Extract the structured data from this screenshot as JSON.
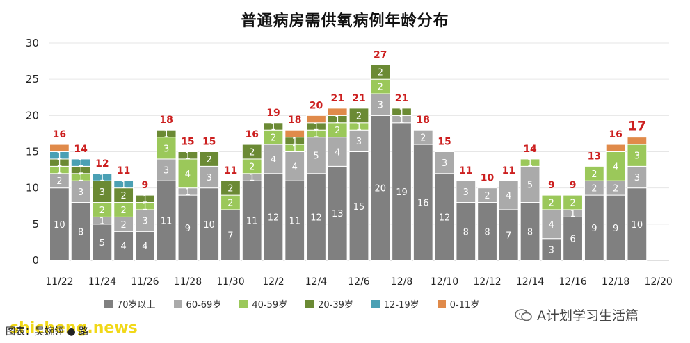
{
  "caption": "图表：吴婉翎 ● 路",
  "watermark": "shicheng.news",
  "wechat": {
    "label": "A计划学习生活篇",
    "icon": "wechat-icon"
  },
  "colors": {
    "70岁以上": "#808080",
    "60-69岁": "#aaaaaa",
    "40-59岁": "#9bc85a",
    "20-39岁": "#6b8a34",
    "12-19岁": "#4aa0b4",
    "0-11岁": "#e08a4a",
    "total_label": "#cc1f1f"
  },
  "chart_data": {
    "type": "bar",
    "stacked": true,
    "title": "普通病房需供氧病例年龄分布",
    "ylim": [
      0,
      30
    ],
    "yticks": [
      0,
      5,
      10,
      15,
      20,
      25,
      30
    ],
    "categories": [
      "11/22",
      "11/23",
      "11/24",
      "11/25",
      "11/26",
      "11/27",
      "11/28",
      "11/29",
      "11/30",
      "12/1",
      "12/2",
      "12/3",
      "12/4",
      "12/5",
      "12/6",
      "12/7",
      "12/8",
      "12/9",
      "12/10",
      "12/11",
      "12/12",
      "12/13",
      "12/14",
      "12/15",
      "12/16",
      "12/17",
      "12/18",
      "12/19",
      "12/20"
    ],
    "xtick_labels": [
      "11/22",
      "",
      "11/24",
      "",
      "11/26",
      "",
      "11/28",
      "",
      "11/30",
      "",
      "12/2",
      "",
      "12/4",
      "",
      "12/6",
      "",
      "12/8",
      "",
      "12/10",
      "",
      "12/12",
      "",
      "12/14",
      "",
      "12/16",
      "",
      "12/18",
      "",
      "12/20"
    ],
    "series": [
      {
        "name": "70岁以上",
        "values": [
          10,
          8,
          5,
          4,
          4,
          11,
          9,
          10,
          7,
          11,
          12,
          11,
          12,
          13,
          15,
          20,
          19,
          16,
          12,
          8,
          8,
          7,
          8,
          3,
          6,
          9,
          9,
          10,
          0
        ]
      },
      {
        "name": "60-69岁",
        "values": [
          2,
          3,
          1,
          2,
          3,
          3,
          1,
          3,
          0,
          1,
          4,
          4,
          5,
          4,
          3,
          3,
          1,
          2,
          3,
          3,
          2,
          4,
          5,
          4,
          1,
          2,
          2,
          3,
          0
        ]
      },
      {
        "name": "40-59岁",
        "values": [
          1,
          1,
          2,
          2,
          1,
          3,
          4,
          0,
          2,
          2,
          2,
          1,
          1,
          2,
          1,
          2,
          0,
          0,
          0,
          0,
          0,
          0,
          1,
          2,
          2,
          2,
          4,
          3,
          0
        ]
      },
      {
        "name": "20-39岁",
        "values": [
          1,
          1,
          3,
          2,
          1,
          1,
          1,
          2,
          2,
          2,
          1,
          1,
          1,
          1,
          2,
          2,
          1,
          0,
          0,
          0,
          0,
          0,
          0,
          0,
          0,
          0,
          0,
          0,
          0
        ]
      },
      {
        "name": "12-19岁",
        "values": [
          1,
          1,
          1,
          1,
          0,
          0,
          0,
          0,
          0,
          0,
          0,
          0,
          0,
          0,
          0,
          0,
          0,
          0,
          0,
          0,
          0,
          0,
          0,
          0,
          0,
          0,
          0,
          0,
          0
        ]
      },
      {
        "name": "0-11岁",
        "values": [
          1,
          0,
          0,
          0,
          0,
          0,
          0,
          0,
          0,
          0,
          0,
          1,
          1,
          1,
          0,
          0,
          0,
          0,
          0,
          0,
          0,
          0,
          0,
          0,
          0,
          0,
          1,
          1,
          0
        ]
      }
    ],
    "totals": [
      16,
      14,
      12,
      11,
      9,
      18,
      15,
      15,
      11,
      16,
      19,
      18,
      20,
      21,
      21,
      27,
      21,
      18,
      15,
      11,
      10,
      11,
      14,
      9,
      9,
      13,
      16,
      17,
      null
    ],
    "segment_labels": [
      [
        "10",
        "2",
        "1",
        "1",
        "1",
        ""
      ],
      [
        "8",
        "3",
        "1",
        "1",
        "1",
        ""
      ],
      [
        "5",
        "1",
        "2",
        "3",
        "1",
        ""
      ],
      [
        "4",
        "2",
        "2",
        "2",
        "1",
        ""
      ],
      [
        "4",
        "3",
        "1",
        "1",
        "",
        ""
      ],
      [
        "11",
        "3",
        "3",
        "1",
        "",
        ""
      ],
      [
        "9",
        "1",
        "4",
        "1",
        "",
        ""
      ],
      [
        "10",
        "3",
        "",
        "2",
        "",
        ""
      ],
      [
        "7",
        "",
        "2",
        "2",
        "",
        ""
      ],
      [
        "11",
        "1",
        "2",
        "2",
        "",
        ""
      ],
      [
        "12",
        "4",
        "2",
        "1",
        "",
        ""
      ],
      [
        "11",
        "4",
        "1",
        "1",
        "",
        ""
      ],
      [
        "12",
        "5",
        "1",
        "1",
        "",
        ""
      ],
      [
        "13",
        "4",
        "2",
        "1",
        "",
        ""
      ],
      [
        "15",
        "3",
        "1",
        "2",
        "",
        ""
      ],
      [
        "20",
        "3",
        "2",
        "2",
        "",
        ""
      ],
      [
        "19",
        "1",
        "",
        "1",
        "",
        ""
      ],
      [
        "16",
        "2",
        "",
        "",
        "",
        ""
      ],
      [
        "12",
        "3",
        "",
        "",
        "",
        ""
      ],
      [
        "8",
        "3",
        "",
        "",
        "",
        ""
      ],
      [
        "8",
        "2",
        "",
        "",
        "",
        ""
      ],
      [
        "7",
        "4",
        "",
        "",
        "",
        ""
      ],
      [
        "8",
        "5",
        "1",
        "",
        "",
        ""
      ],
      [
        "3",
        "4",
        "2",
        "",
        "",
        ""
      ],
      [
        "6",
        "1",
        "2",
        "",
        "",
        ""
      ],
      [
        "9",
        "2",
        "2",
        "",
        "",
        ""
      ],
      [
        "9",
        "2",
        "4",
        "",
        "",
        ""
      ],
      [
        "10",
        "3",
        "3",
        "",
        "",
        ""
      ],
      [
        "",
        "",
        "",
        "",
        "",
        ""
      ]
    ],
    "legend": [
      "70岁以上",
      "60-69岁",
      "40-59岁",
      "20-39岁",
      "12-19岁",
      "0-11岁"
    ],
    "grid": true,
    "legend_position": "bottom"
  }
}
